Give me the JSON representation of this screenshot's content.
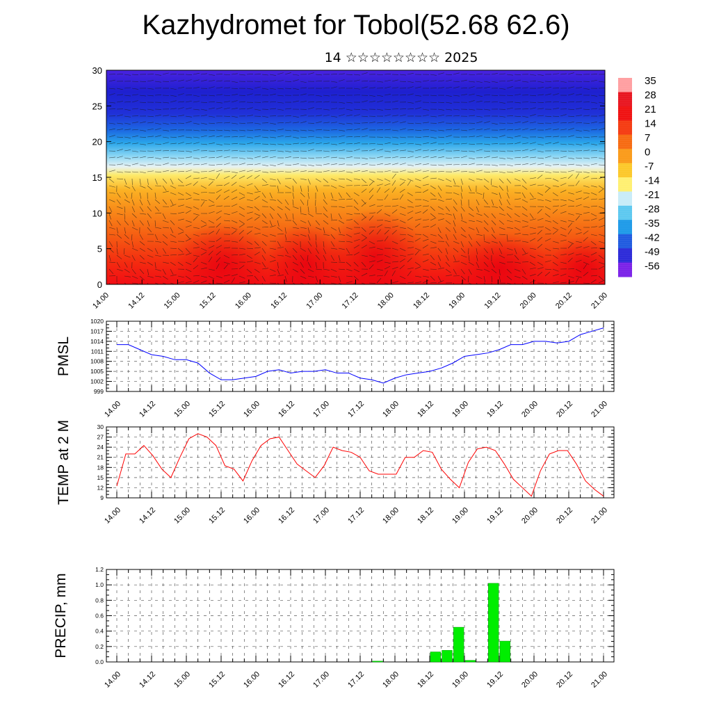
{
  "header": {
    "title": "Kazhydromet for Tobol(52.68 62.6)",
    "subtitle": "14 ☆☆☆☆☆☆☆☆ 2025"
  },
  "time_labels": [
    "14.00",
    "14.12",
    "15.00",
    "15.12",
    "16.00",
    "16.12",
    "17.00",
    "17.12",
    "18.00",
    "18.12",
    "19.00",
    "19.12",
    "20.00",
    "20.12",
    "21.00"
  ],
  "chart_data": [
    {
      "type": "heatmap",
      "title": "",
      "ylim": [
        0,
        30
      ],
      "y_ticks": [
        0,
        5,
        10,
        15,
        20,
        25,
        30
      ],
      "x_tick_labels": [
        "14.00",
        "14.12",
        "15.00",
        "15.12",
        "16.00",
        "16.12",
        "17.00",
        "17.12",
        "18.00",
        "18.12",
        "19.00",
        "19.12",
        "20.00",
        "20.12",
        "21.00"
      ],
      "colorbar": {
        "labels": [
          "35",
          "28",
          "21",
          "14",
          "7",
          "0",
          "-7",
          "-14",
          "-21",
          "-28",
          "-35",
          "-42",
          "-49",
          "-56"
        ],
        "colors": [
          "#ff9ea0",
          "#e8131e",
          "#f01010",
          "#f53a10",
          "#f76a10",
          "#fa9a18",
          "#fcc828",
          "#fff070",
          "#c8ecf8",
          "#5cc8f0",
          "#1c9ae8",
          "#1e5ae0",
          "#2a28d8",
          "#7a20e8"
        ]
      },
      "overlay": "wind vectors"
    },
    {
      "type": "line",
      "ylabel": "PMSL",
      "ylim": [
        999,
        1020
      ],
      "y_ticks": [
        999,
        1002,
        1005,
        1008,
        1011,
        1014,
        1017,
        1020
      ],
      "x_tick_labels": [
        "14.00",
        "14.12",
        "15.00",
        "15.12",
        "16.00",
        "16.12",
        "17.00",
        "17.12",
        "18.00",
        "18.12",
        "19.00",
        "19.12",
        "20.00",
        "20.12",
        "21.00"
      ],
      "series": [
        {
          "color": "#0000ff",
          "values": [
            1013,
            1013,
            1011.5,
            1010,
            1009.5,
            1008.5,
            1008.5,
            1007.5,
            1004.5,
            1002.5,
            1002.5,
            1003,
            1003.5,
            1005,
            1005.5,
            1004.5,
            1005,
            1005,
            1005.5,
            1004.5,
            1004.5,
            1003,
            1002.5,
            1001.5,
            1003,
            1004,
            1004.5,
            1005,
            1006,
            1007.5,
            1009.5,
            1010,
            1010.5,
            1011.5,
            1013,
            1013,
            1014,
            1014,
            1013.5,
            1014,
            1016,
            1017,
            1018
          ]
        }
      ]
    },
    {
      "type": "line",
      "ylabel": "TEMP at 2 M",
      "ylim": [
        9,
        30
      ],
      "y_ticks": [
        9,
        12,
        15,
        18,
        21,
        24,
        27,
        30
      ],
      "x_tick_labels": [
        "14.00",
        "14.12",
        "15.00",
        "15.12",
        "16.00",
        "16.12",
        "17.00",
        "17.12",
        "18.00",
        "18.12",
        "19.00",
        "19.12",
        "20.00",
        "20.12",
        "21.00"
      ],
      "series": [
        {
          "color": "#ff0000",
          "values": [
            12.5,
            22,
            22,
            24.5,
            21.5,
            17.5,
            15,
            21,
            26.5,
            28,
            27,
            24.5,
            18.5,
            17.5,
            14,
            20,
            24.5,
            26.5,
            27,
            23,
            19,
            17,
            15,
            18.5,
            24,
            23,
            22.5,
            21,
            17,
            16,
            16,
            16,
            21,
            21,
            23,
            22.5,
            17.5,
            14.5,
            12,
            19.5,
            23.5,
            24,
            23,
            19,
            14.5,
            12,
            9.5,
            17,
            22,
            23,
            23,
            19,
            14,
            11.5,
            9.5
          ]
        }
      ]
    },
    {
      "type": "bar",
      "ylabel": "PRECIP, mm",
      "ylim": [
        0,
        1.2
      ],
      "y_ticks": [
        "0.0",
        "0.2",
        "0.4",
        "0.6",
        "0.8",
        "1.0",
        "1.2"
      ],
      "x_tick_labels": [
        "14.00",
        "14.12",
        "15.00",
        "15.12",
        "16.00",
        "16.12",
        "17.00",
        "17.12",
        "18.00",
        "18.12",
        "19.00",
        "19.12",
        "20.00",
        "20.12",
        "21.00"
      ],
      "series": [
        {
          "color": "#00ee00",
          "bars": [
            {
              "x_index": 22.5,
              "value": 0.01
            },
            {
              "x_index": 27.5,
              "value": 0.13
            },
            {
              "x_index": 28.5,
              "value": 0.15
            },
            {
              "x_index": 29.5,
              "value": 0.45
            },
            {
              "x_index": 30.5,
              "value": 0.02
            },
            {
              "x_index": 32.5,
              "value": 1.02
            },
            {
              "x_index": 33.5,
              "value": 0.27
            }
          ]
        }
      ]
    }
  ]
}
